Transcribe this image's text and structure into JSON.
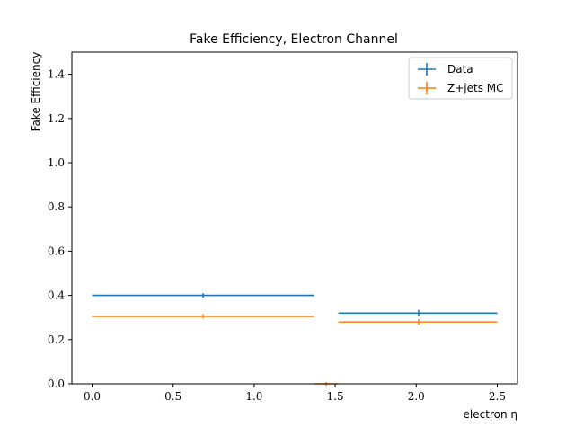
{
  "chart_data": {
    "type": "scatter",
    "title": "Fake Efficiency, Electron Channel",
    "xlabel": "electron η",
    "ylabel": "Fake Efficiency",
    "xlim": [
      -0.125,
      2.625
    ],
    "ylim": [
      0,
      1.5
    ],
    "x_ticks": [
      0.0,
      0.5,
      1.0,
      1.5,
      2.0,
      2.5
    ],
    "x_tick_labels": [
      "0.0",
      "0.5",
      "1.0",
      "1.5",
      "2.0",
      "2.5"
    ],
    "y_ticks": [
      0.0,
      0.2,
      0.4,
      0.6,
      0.8,
      1.0,
      1.2,
      1.4
    ],
    "y_tick_labels": [
      "0.0",
      "0.2",
      "0.4",
      "0.6",
      "0.8",
      "1.0",
      "1.2",
      "1.4"
    ],
    "grid": false,
    "legend_position": "top-right",
    "series": [
      {
        "name": "Data",
        "color": "#1f77b4",
        "points": [
          {
            "x": 0.685,
            "xerr_low": 0.685,
            "xerr_high": 0.685,
            "y": 0.4,
            "yerr": 0.01
          },
          {
            "x": 2.015,
            "xerr_low": 0.495,
            "xerr_high": 0.485,
            "y": 0.32,
            "yerr": 0.015
          }
        ]
      },
      {
        "name": "Z+jets MC",
        "color": "#ff7f0e",
        "points": [
          {
            "x": 0.685,
            "xerr_low": 0.685,
            "xerr_high": 0.685,
            "y": 0.305,
            "yerr": 0.01
          },
          {
            "x": 1.445,
            "xerr_low": 0.075,
            "xerr_high": 0.075,
            "y": 0.0,
            "yerr": 0.0
          },
          {
            "x": 2.015,
            "xerr_low": 0.495,
            "xerr_high": 0.485,
            "y": 0.28,
            "yerr": 0.012
          }
        ]
      }
    ]
  }
}
